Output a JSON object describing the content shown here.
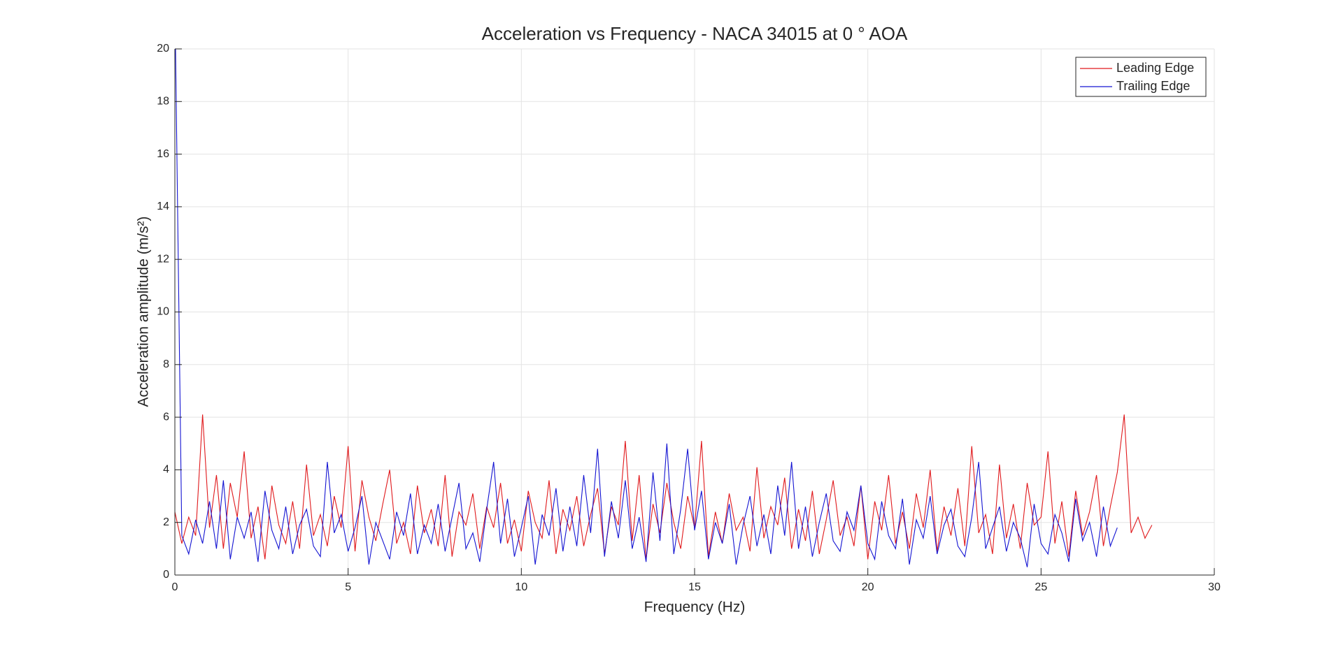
{
  "chart_data": {
    "type": "line",
    "title": "Acceleration vs Frequency - NACA 34015 at 0 ° AOA",
    "x_label": "Frequency (Hz)",
    "y_label": "Acceleration amplitude (m/s²)",
    "xlim": [
      0,
      30
    ],
    "xticks": [
      0,
      5,
      10,
      15,
      20,
      25,
      30
    ],
    "ylim": [
      0,
      20
    ],
    "yticks": [
      0,
      2,
      4,
      6,
      8,
      10,
      12,
      14,
      16,
      18,
      20
    ],
    "grid": true,
    "legend": "upper-right",
    "x": [
      0,
      0.2,
      0.4,
      0.6,
      0.8,
      1,
      1.2,
      1.4,
      1.6,
      1.8,
      2,
      2.2,
      2.4,
      2.6,
      2.8,
      3,
      3.2,
      3.4,
      3.6,
      3.8,
      4,
      4.2,
      4.4,
      4.6,
      4.8,
      5,
      5.2,
      5.4,
      5.6,
      5.8,
      6,
      6.2,
      6.4,
      6.6,
      6.8,
      7,
      7.2,
      7.4,
      7.6,
      7.8,
      8,
      8.2,
      8.4,
      8.6,
      8.8,
      9,
      9.2,
      9.4,
      9.6,
      9.8,
      10,
      10.2,
      10.4,
      10.6,
      10.8,
      11,
      11.2,
      11.4,
      11.6,
      11.8,
      12,
      12.2,
      12.4,
      12.6,
      12.8,
      13,
      13.2,
      13.4,
      13.6,
      13.8,
      14,
      14.2,
      14.4,
      14.6,
      14.8,
      15,
      15.2,
      15.4,
      15.6,
      15.8,
      16,
      16.2,
      16.4,
      16.6,
      16.8,
      17,
      17.2,
      17.4,
      17.6,
      17.8,
      18,
      18.2,
      18.4,
      18.6,
      18.8,
      19,
      19.2,
      19.4,
      19.6,
      19.8,
      20,
      20.2,
      20.4,
      20.6,
      20.8,
      21,
      21.2,
      21.4,
      21.6,
      21.8,
      22,
      22.2,
      22.4,
      22.6,
      22.8,
      23,
      23.2,
      23.4,
      23.6,
      23.8,
      24,
      24.2,
      24.4,
      24.6,
      24.8,
      25,
      25.2,
      25.4,
      25.6,
      25.8,
      26,
      26.2,
      26.4,
      26.6,
      26.8,
      27,
      27.2,
      27.4,
      27.6,
      27.8,
      28,
      28.2
    ],
    "series": [
      {
        "name": "Leading Edge",
        "color": "#e0191c",
        "values": [
          2.4,
          1.2,
          2.2,
          1.5,
          6.1,
          1.8,
          3.8,
          1.0,
          3.5,
          2.2,
          4.7,
          1.4,
          2.6,
          0.6,
          3.4,
          1.9,
          1.2,
          2.8,
          1.0,
          4.2,
          1.5,
          2.3,
          1.1,
          3.0,
          1.8,
          4.9,
          0.9,
          3.6,
          2.2,
          1.3,
          2.7,
          4.0,
          1.2,
          2.0,
          0.8,
          3.4,
          1.6,
          2.5,
          1.1,
          3.8,
          0.7,
          2.4,
          1.9,
          3.1,
          1.0,
          2.6,
          1.8,
          3.5,
          1.2,
          2.1,
          0.9,
          3.2,
          2.0,
          1.4,
          3.6,
          0.8,
          2.5,
          1.7,
          3.0,
          1.1,
          2.3,
          3.3,
          0.8,
          2.6,
          1.9,
          5.1,
          1.3,
          3.8,
          0.6,
          2.7,
          1.6,
          3.5,
          2.0,
          1.0,
          3.0,
          1.8,
          5.1,
          0.7,
          2.4,
          1.2,
          3.1,
          1.7,
          2.2,
          0.9,
          4.1,
          1.4,
          2.6,
          1.9,
          3.7,
          1.0,
          2.5,
          1.3,
          3.2,
          0.8,
          2.1,
          3.6,
          1.5,
          2.2,
          1.1,
          3.4,
          0.6,
          2.8,
          1.7,
          3.8,
          1.2,
          2.4,
          1.0,
          3.1,
          1.8,
          4.0,
          0.9,
          2.6,
          1.5,
          3.3,
          1.1,
          4.9,
          1.6,
          2.3,
          0.8,
          4.2,
          1.4,
          2.7,
          1.0,
          3.5,
          1.9,
          2.2,
          4.7,
          1.2,
          2.8,
          0.7,
          3.2,
          1.5,
          2.4,
          3.8,
          1.1,
          2.6,
          3.9,
          6.1,
          1.6,
          2.2,
          1.4,
          1.9
        ]
      },
      {
        "name": "Trailing Edge",
        "color": "#1414d2",
        "values": [
          22,
          1.5,
          0.8,
          2.1,
          1.2,
          2.8,
          1.0,
          3.6,
          0.6,
          2.2,
          1.4,
          2.4,
          0.5,
          3.2,
          1.7,
          1.0,
          2.6,
          0.8,
          1.9,
          2.5,
          1.1,
          0.7,
          4.3,
          1.6,
          2.3,
          0.9,
          1.8,
          3.0,
          0.4,
          2.0,
          1.3,
          0.6,
          2.4,
          1.5,
          3.1,
          0.8,
          1.9,
          1.2,
          2.7,
          0.9,
          2.2,
          3.5,
          1.0,
          1.6,
          0.5,
          2.5,
          4.3,
          1.2,
          2.9,
          0.7,
          1.8,
          3.0,
          0.4,
          2.3,
          1.5,
          3.3,
          0.9,
          2.6,
          1.1,
          3.8,
          1.6,
          4.8,
          0.7,
          2.8,
          1.4,
          3.6,
          1.0,
          2.2,
          0.5,
          3.9,
          1.3,
          5.0,
          0.8,
          2.5,
          4.8,
          1.7,
          3.2,
          0.6,
          2.0,
          1.2,
          2.7,
          0.4,
          1.9,
          3.0,
          1.1,
          2.3,
          0.8,
          3.4,
          1.5,
          4.3,
          1.0,
          2.6,
          0.7,
          2.0,
          3.1,
          1.3,
          0.9,
          2.4,
          1.7,
          3.4,
          1.2,
          0.6,
          2.8,
          1.5,
          1.0,
          2.9,
          0.4,
          2.1,
          1.4,
          3.0,
          0.8,
          1.9,
          2.5,
          1.1,
          0.7,
          2.2,
          4.3,
          1.0,
          1.8,
          2.6,
          0.9,
          2.0,
          1.4,
          0.3,
          2.7,
          1.2,
          0.8,
          2.3,
          1.6,
          0.5,
          2.9,
          1.3,
          2.0,
          0.7,
          2.6,
          1.1,
          1.8,
          null,
          null,
          null,
          null,
          null
        ]
      }
    ]
  }
}
